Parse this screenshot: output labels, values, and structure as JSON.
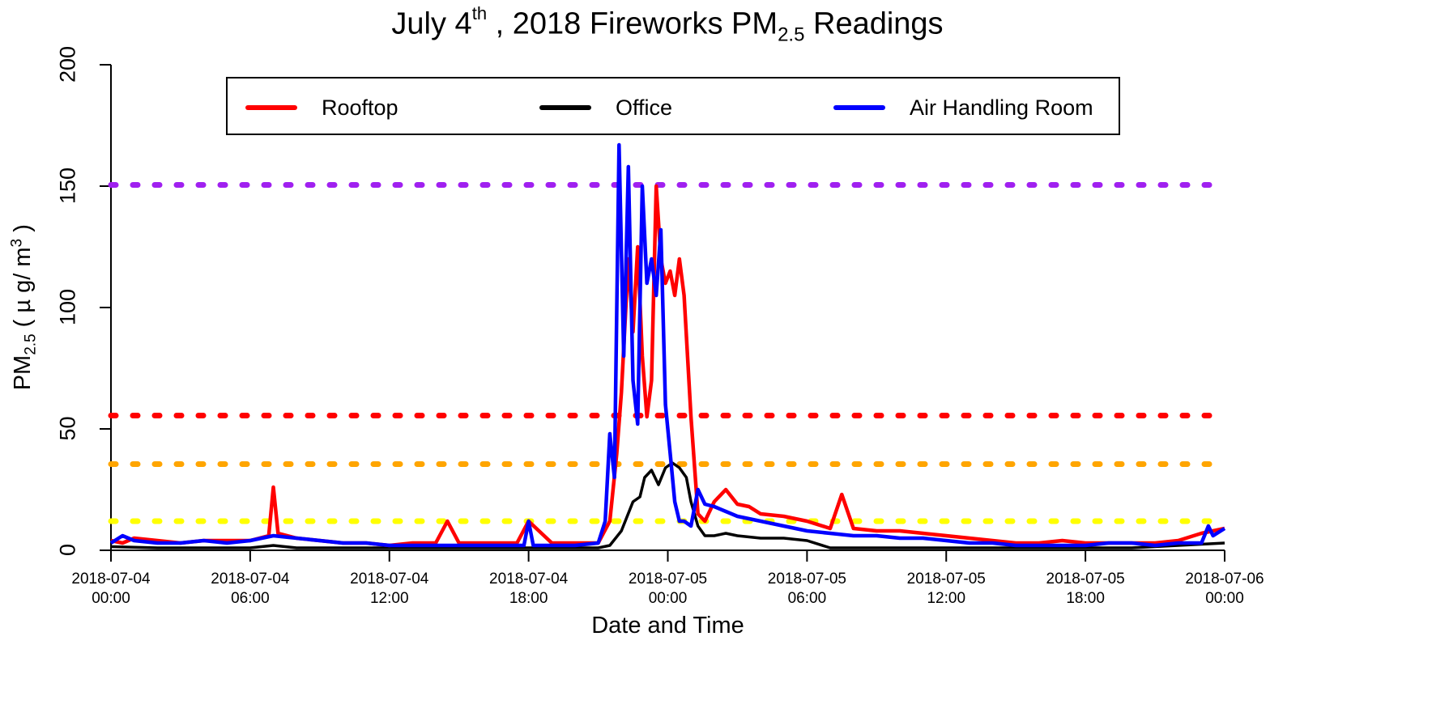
{
  "chart_data": {
    "type": "line",
    "title": "July 4th , 2018 Fireworks PM2.5 Readings",
    "title_parts": {
      "pre": "July 4",
      "sup": "th",
      "mid": " , 2018 Fireworks PM",
      "sub": "2.5",
      "post": " Readings"
    },
    "xlabel": "Date and Time",
    "ylabel": "PM2.5 ( µg/m3 )",
    "ylabel_parts": {
      "pre": "PM",
      "sub": "2.5",
      "mid": " ( µ g/ m",
      "sup": "3",
      "post": " )"
    },
    "ylim": [
      0,
      200
    ],
    "yticks": [
      0,
      50,
      100,
      150,
      200
    ],
    "xlim_hours": [
      0,
      48
    ],
    "xticks": [
      {
        "hour": 0,
        "date": "2018-07-04",
        "time": "00:00"
      },
      {
        "hour": 6,
        "date": "2018-07-04",
        "time": "06:00"
      },
      {
        "hour": 12,
        "date": "2018-07-04",
        "time": "12:00"
      },
      {
        "hour": 18,
        "date": "2018-07-04",
        "time": "18:00"
      },
      {
        "hour": 24,
        "date": "2018-07-05",
        "time": "00:00"
      },
      {
        "hour": 30,
        "date": "2018-07-05",
        "time": "06:00"
      },
      {
        "hour": 36,
        "date": "2018-07-05",
        "time": "12:00"
      },
      {
        "hour": 42,
        "date": "2018-07-05",
        "time": "18:00"
      },
      {
        "hour": 48,
        "date": "2018-07-06",
        "time": "00:00"
      }
    ],
    "grid": false,
    "legend_position": "top",
    "reference_lines": [
      {
        "value": 150.5,
        "color": "#a020f0",
        "style": "dotted"
      },
      {
        "value": 55.5,
        "color": "#ff0000",
        "style": "dotted"
      },
      {
        "value": 35.5,
        "color": "#ffa500",
        "style": "dotted"
      },
      {
        "value": 12,
        "color": "#ffff00",
        "style": "dotted"
      }
    ],
    "series": [
      {
        "name": "Rooftop",
        "color": "#ff0000",
        "x_hours": [
          0,
          0.5,
          1,
          2,
          3,
          4,
          5,
          6,
          6.8,
          7,
          7.2,
          8,
          9,
          10,
          11,
          12,
          13,
          14,
          14.5,
          15,
          16,
          17,
          17.5,
          18,
          19,
          20,
          21,
          21.5,
          21.8,
          22,
          22.3,
          22.5,
          22.7,
          22.9,
          23.1,
          23.3,
          23.5,
          23.7,
          23.9,
          24.1,
          24.3,
          24.5,
          24.7,
          25,
          25.3,
          25.6,
          26,
          26.5,
          27,
          27.5,
          28,
          29,
          30,
          31,
          31.5,
          32,
          33,
          34,
          35,
          36,
          37,
          38,
          39,
          40,
          41,
          42,
          43,
          44,
          45,
          46,
          47,
          47.5,
          48
        ],
        "values": [
          4,
          3,
          5,
          4,
          3,
          4,
          4,
          4,
          6,
          26,
          7,
          5,
          4,
          3,
          3,
          2,
          3,
          3,
          12,
          3,
          3,
          3,
          3,
          12,
          3,
          3,
          3,
          12,
          40,
          65,
          120,
          90,
          125,
          80,
          55,
          70,
          150,
          120,
          110,
          115,
          105,
          120,
          105,
          55,
          15,
          12,
          20,
          25,
          19,
          18,
          15,
          14,
          12,
          9,
          23,
          9,
          8,
          8,
          7,
          6,
          5,
          4,
          3,
          3,
          4,
          3,
          3,
          3,
          3,
          4,
          7,
          8,
          9
        ]
      },
      {
        "name": "Office",
        "color": "#000000",
        "x_hours": [
          0,
          2,
          4,
          6,
          7,
          8,
          10,
          12,
          14,
          16,
          18,
          20,
          21,
          21.5,
          22,
          22.5,
          22.8,
          23,
          23.3,
          23.6,
          23.9,
          24.2,
          24.5,
          24.8,
          25,
          25.3,
          25.6,
          26,
          26.5,
          27,
          28,
          29,
          30,
          31,
          32,
          34,
          36,
          38,
          40,
          42,
          44,
          46,
          48
        ],
        "values": [
          1.5,
          1,
          1,
          1,
          2,
          1,
          1,
          1,
          1,
          1,
          1,
          1,
          1,
          2,
          8,
          20,
          22,
          30,
          33,
          27,
          34,
          36,
          34,
          30,
          20,
          10,
          6,
          6,
          7,
          6,
          5,
          5,
          4,
          1,
          1,
          1,
          1,
          1,
          1,
          1,
          1,
          2,
          3
        ]
      },
      {
        "name": "Air Handling Room",
        "color": "#0000ff",
        "x_hours": [
          0,
          0.5,
          1,
          2,
          3,
          4,
          5,
          6,
          7,
          8,
          9,
          10,
          11,
          12,
          13,
          14,
          15,
          16,
          17,
          17.8,
          18,
          18.2,
          19,
          20,
          21,
          21.3,
          21.5,
          21.7,
          21.9,
          22.1,
          22.3,
          22.5,
          22.7,
          22.9,
          23.1,
          23.3,
          23.5,
          23.7,
          23.9,
          24.1,
          24.3,
          24.5,
          24.7,
          25,
          25.3,
          25.6,
          26,
          26.5,
          27,
          28,
          29,
          30,
          31,
          32,
          33,
          34,
          35,
          36,
          37,
          38,
          39,
          40,
          41,
          42,
          43,
          44,
          45,
          46,
          47,
          47.3,
          47.5,
          48
        ],
        "values": [
          3,
          6,
          4,
          3,
          3,
          4,
          3,
          4,
          6,
          5,
          4,
          3,
          3,
          2,
          2,
          2,
          2,
          2,
          2,
          2,
          12,
          2,
          2,
          2,
          3,
          12,
          48,
          30,
          167,
          80,
          158,
          70,
          52,
          150,
          110,
          120,
          105,
          132,
          60,
          40,
          20,
          12,
          12,
          10,
          25,
          19,
          18,
          16,
          14,
          12,
          10,
          8,
          7,
          6,
          6,
          5,
          5,
          4,
          3,
          3,
          2,
          2,
          2,
          2,
          3,
          3,
          2,
          3,
          3,
          10,
          6,
          9
        ]
      }
    ]
  },
  "legend": {
    "items": [
      {
        "label": "Rooftop",
        "color": "#ff0000"
      },
      {
        "label": "Office",
        "color": "#000000"
      },
      {
        "label": "Air Handling Room",
        "color": "#0000ff"
      }
    ]
  },
  "axes": {
    "y_ticks": [
      "0",
      "50",
      "100",
      "150",
      "200"
    ],
    "x_ticks": [
      {
        "date": "2018-07-04",
        "time": "00:00"
      },
      {
        "date": "2018-07-04",
        "time": "06:00"
      },
      {
        "date": "2018-07-04",
        "time": "12:00"
      },
      {
        "date": "2018-07-04",
        "time": "18:00"
      },
      {
        "date": "2018-07-05",
        "time": "00:00"
      },
      {
        "date": "2018-07-05",
        "time": "06:00"
      },
      {
        "date": "2018-07-05",
        "time": "12:00"
      },
      {
        "date": "2018-07-05",
        "time": "18:00"
      },
      {
        "date": "2018-07-06",
        "time": "00:00"
      }
    ]
  }
}
